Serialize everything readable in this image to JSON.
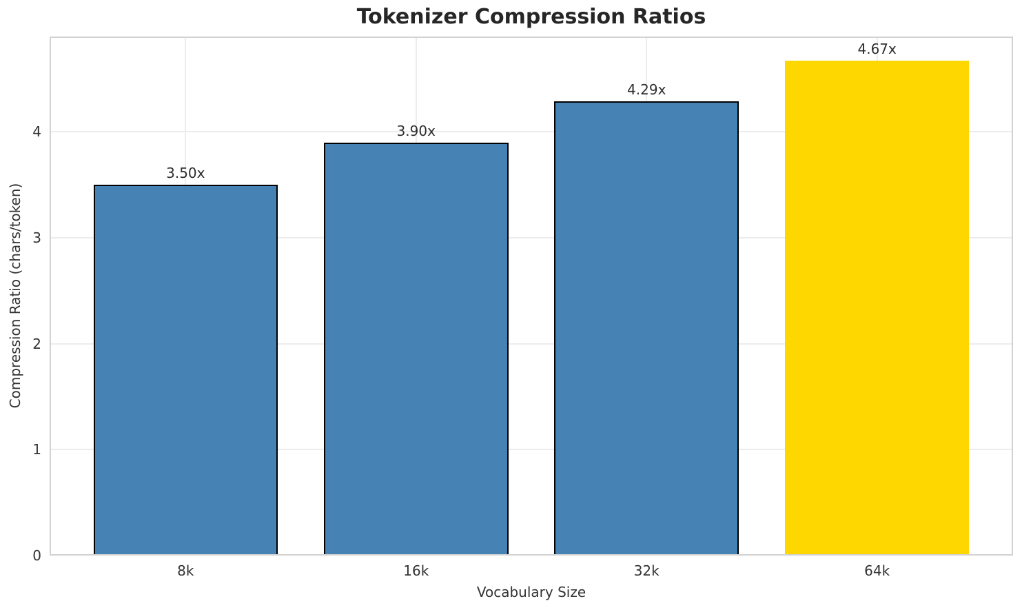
{
  "chart_data": {
    "type": "bar",
    "title": "Tokenizer Compression Ratios",
    "xlabel": "Vocabulary Size",
    "ylabel": "Compression Ratio (chars/token)",
    "categories": [
      "8k",
      "16k",
      "32k",
      "64k"
    ],
    "values": [
      3.5,
      3.9,
      4.29,
      4.67
    ],
    "bar_labels": [
      "3.50x",
      "3.90x",
      "4.29x",
      "4.67x"
    ],
    "bar_colors": [
      "#4682B4",
      "#4682B4",
      "#4682B4",
      "#FFD700"
    ],
    "bar_edge_colors": [
      "#000000",
      "#000000",
      "#000000",
      "none"
    ],
    "yticks": [
      "0",
      "1",
      "2",
      "3",
      "4"
    ],
    "ylim": [
      0,
      4.9
    ],
    "grid": true,
    "legend": null,
    "colors": {
      "bar_blue": "#4682B4",
      "bar_gold": "#FFD700",
      "grid": "#ececec",
      "frame": "#d2d2d2",
      "text": "#333333",
      "title_text": "#262626"
    }
  }
}
